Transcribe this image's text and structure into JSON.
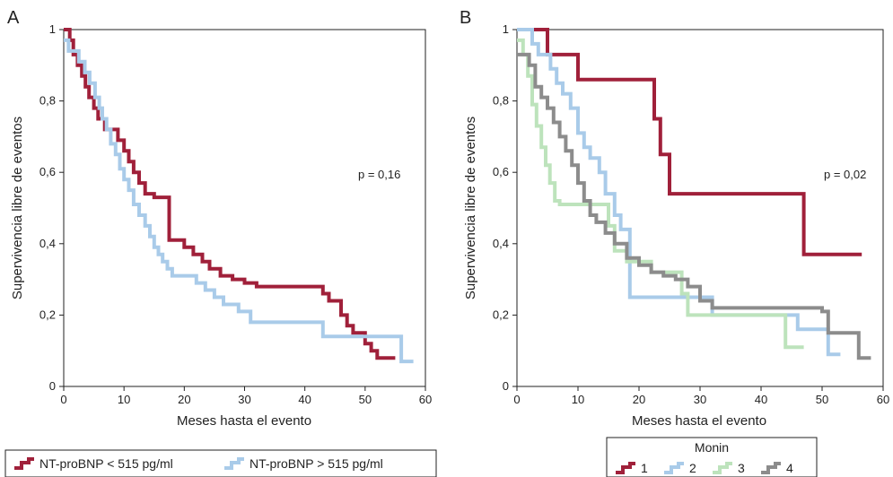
{
  "chart_data": [
    {
      "panel": "A",
      "type": "line",
      "step": true,
      "xlabel": "Meses hasta el evento",
      "ylabel": "Supervivencia libre de eventos",
      "xlim": [
        0,
        60
      ],
      "ylim": [
        0,
        1
      ],
      "xticks": [
        0,
        10,
        20,
        30,
        40,
        50,
        60
      ],
      "yticks": [
        0,
        0.2,
        0.4,
        0.6,
        0.8,
        1
      ],
      "ytick_labels": [
        "0",
        "0,2",
        "0,4",
        "0,6",
        "0,8",
        "1"
      ],
      "annotation": "p = 0,16",
      "grid": false,
      "legend_position": "bottom-left",
      "series": [
        {
          "name": "NT-proBNP < 515 pg/ml",
          "color": "#a0203a",
          "x": [
            0,
            1,
            1.6,
            2.3,
            3,
            3.6,
            4.2,
            5,
            5.7,
            6.8,
            9,
            10,
            10.8,
            11.6,
            12.5,
            13.5,
            15,
            17.5,
            18.2,
            20,
            21.5,
            23,
            24.2,
            26,
            28,
            30,
            32,
            33,
            43,
            44,
            46,
            47,
            48,
            50,
            51,
            52,
            55
          ],
          "y": [
            1,
            0.97,
            0.93,
            0.9,
            0.87,
            0.84,
            0.81,
            0.78,
            0.75,
            0.72,
            0.69,
            0.66,
            0.63,
            0.6,
            0.57,
            0.54,
            0.53,
            0.41,
            0.41,
            0.39,
            0.37,
            0.35,
            0.33,
            0.31,
            0.3,
            0.29,
            0.28,
            0.28,
            0.26,
            0.24,
            0.2,
            0.17,
            0.15,
            0.12,
            0.1,
            0.08,
            0.08
          ]
        },
        {
          "name": "NT-proBNP > 515 pg/ml",
          "color": "#a9cbe9",
          "x": [
            0,
            0.8,
            2.5,
            3.5,
            4.3,
            5.2,
            5.9,
            6.4,
            7.1,
            7.8,
            8.6,
            9.3,
            10,
            10.8,
            11.6,
            12.5,
            13.5,
            14.3,
            15,
            15.7,
            16.4,
            17.2,
            18,
            19,
            22,
            23.5,
            25,
            26.5,
            29,
            31,
            43,
            53,
            56,
            57,
            58
          ],
          "y": [
            0.97,
            0.94,
            0.91,
            0.88,
            0.85,
            0.81,
            0.78,
            0.75,
            0.72,
            0.68,
            0.65,
            0.61,
            0.58,
            0.55,
            0.51,
            0.48,
            0.45,
            0.42,
            0.39,
            0.37,
            0.35,
            0.33,
            0.31,
            0.31,
            0.29,
            0.27,
            0.25,
            0.23,
            0.21,
            0.18,
            0.14,
            0.14,
            0.07,
            0.07,
            0.07
          ]
        }
      ],
      "legend_entries": [
        "NT-proBNP < 515 pg/ml",
        "NT-proBNP > 515 pg/ml"
      ]
    },
    {
      "panel": "B",
      "type": "line",
      "step": true,
      "xlabel": "Meses hasta el evento",
      "ylabel": "Supervivencia libre de eventos",
      "xlim": [
        0,
        60
      ],
      "ylim": [
        0,
        1
      ],
      "xticks": [
        0,
        10,
        20,
        30,
        40,
        50,
        60
      ],
      "yticks": [
        0,
        0.2,
        0.4,
        0.6,
        0.8,
        1
      ],
      "ytick_labels": [
        "0",
        "0,2",
        "0,4",
        "0,6",
        "0,8",
        "1"
      ],
      "annotation": "p = 0,02",
      "grid": false,
      "legend_position": "bottom-right",
      "legend_title": "Monin",
      "series": [
        {
          "name": "1",
          "color": "#a0203a",
          "x": [
            0,
            5,
            10,
            22.5,
            23.5,
            25,
            47,
            56.5
          ],
          "y": [
            1,
            0.93,
            0.86,
            0.75,
            0.65,
            0.54,
            0.37,
            0.37
          ]
        },
        {
          "name": "2",
          "color": "#a9cbe9",
          "x": [
            0,
            2.5,
            3.5,
            5.5,
            6.5,
            7.5,
            8.8,
            10,
            11,
            12,
            13.5,
            14.5,
            16,
            17,
            18.5,
            32,
            46,
            51,
            53
          ],
          "y": [
            1,
            0.96,
            0.93,
            0.89,
            0.85,
            0.82,
            0.78,
            0.71,
            0.67,
            0.64,
            0.6,
            0.54,
            0.48,
            0.44,
            0.25,
            0.2,
            0.16,
            0.09,
            0.09
          ]
        },
        {
          "name": "3",
          "color": "#bde3bc",
          "x": [
            0,
            1,
            1.8,
            2.5,
            3.2,
            4,
            4.7,
            5.4,
            6.2,
            7,
            8,
            15,
            16,
            18,
            22,
            27,
            28,
            44,
            45,
            47
          ],
          "y": [
            0.97,
            0.93,
            0.87,
            0.79,
            0.73,
            0.67,
            0.62,
            0.57,
            0.52,
            0.51,
            0.51,
            0.45,
            0.38,
            0.35,
            0.32,
            0.26,
            0.2,
            0.11,
            0.11,
            0.11
          ]
        },
        {
          "name": "4",
          "color": "#8c8c8c",
          "x": [
            0,
            2,
            3,
            4,
            5,
            6,
            7,
            8,
            9,
            10,
            11,
            12,
            13,
            14.5,
            16,
            18,
            20,
            22,
            24,
            26,
            28,
            30,
            32,
            50,
            51,
            56,
            58
          ],
          "y": [
            0.93,
            0.9,
            0.84,
            0.81,
            0.78,
            0.74,
            0.7,
            0.66,
            0.62,
            0.57,
            0.52,
            0.48,
            0.46,
            0.43,
            0.4,
            0.36,
            0.34,
            0.32,
            0.31,
            0.3,
            0.28,
            0.24,
            0.22,
            0.21,
            0.15,
            0.08,
            0.08
          ]
        }
      ],
      "legend_entries": [
        "1",
        "2",
        "3",
        "4"
      ]
    }
  ]
}
